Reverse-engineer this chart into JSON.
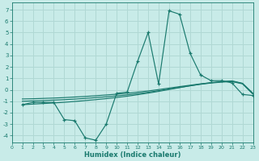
{
  "xlabel": "Humidex (Indice chaleur)",
  "background_color": "#c8ebe8",
  "grid_color": "#b0d8d4",
  "line_color": "#1a7a6e",
  "xlim": [
    0,
    23
  ],
  "ylim": [
    -4.6,
    7.6
  ],
  "x_ticks": [
    0,
    1,
    2,
    3,
    4,
    5,
    6,
    7,
    8,
    9,
    10,
    11,
    12,
    13,
    14,
    15,
    16,
    17,
    18,
    19,
    20,
    21,
    22,
    23
  ],
  "y_ticks": [
    -4,
    -3,
    -2,
    -1,
    0,
    1,
    2,
    3,
    4,
    5,
    6,
    7
  ],
  "main_x": [
    1,
    2,
    3,
    4,
    5,
    6,
    7,
    8,
    9,
    10,
    11,
    12,
    13,
    14,
    15,
    16,
    17,
    18,
    19,
    20,
    21,
    22,
    23
  ],
  "main_y": [
    -1.3,
    -1.1,
    -1.1,
    -1.1,
    -2.6,
    -2.7,
    -4.2,
    -4.4,
    -3.0,
    -0.3,
    -0.2,
    2.5,
    5.0,
    0.5,
    6.9,
    6.6,
    3.2,
    1.3,
    0.8,
    0.8,
    0.6,
    -0.4,
    -0.5
  ],
  "env_lines": [
    {
      "x": [
        1,
        2,
        3,
        4,
        5,
        6,
        7,
        8,
        9,
        10,
        11,
        12,
        13,
        14,
        15,
        16,
        17,
        18,
        19,
        20,
        21,
        22,
        23
      ],
      "y": [
        -0.8,
        -0.78,
        -0.75,
        -0.72,
        -0.68,
        -0.63,
        -0.58,
        -0.52,
        -0.45,
        -0.38,
        -0.3,
        -0.2,
        -0.1,
        0.02,
        0.15,
        0.28,
        0.4,
        0.52,
        0.62,
        0.7,
        0.75,
        0.55,
        -0.35
      ]
    },
    {
      "x": [
        1,
        2,
        3,
        4,
        5,
        6,
        7,
        8,
        9,
        10,
        11,
        12,
        13,
        14,
        15,
        16,
        17,
        18,
        19,
        20,
        21,
        22,
        23
      ],
      "y": [
        -1.0,
        -0.97,
        -0.94,
        -0.9,
        -0.86,
        -0.81,
        -0.75,
        -0.68,
        -0.61,
        -0.53,
        -0.44,
        -0.33,
        -0.21,
        -0.08,
        0.07,
        0.21,
        0.35,
        0.48,
        0.59,
        0.67,
        0.72,
        0.52,
        -0.38
      ]
    },
    {
      "x": [
        1,
        2,
        3,
        4,
        5,
        6,
        7,
        8,
        9,
        10,
        11,
        12,
        13,
        14,
        15,
        16,
        17,
        18,
        19,
        20,
        21,
        22,
        23
      ],
      "y": [
        -1.3,
        -1.25,
        -1.2,
        -1.15,
        -1.09,
        -1.02,
        -0.94,
        -0.86,
        -0.77,
        -0.67,
        -0.56,
        -0.43,
        -0.29,
        -0.14,
        0.03,
        0.19,
        0.35,
        0.5,
        0.62,
        0.72,
        0.78,
        0.57,
        -0.3
      ]
    }
  ]
}
